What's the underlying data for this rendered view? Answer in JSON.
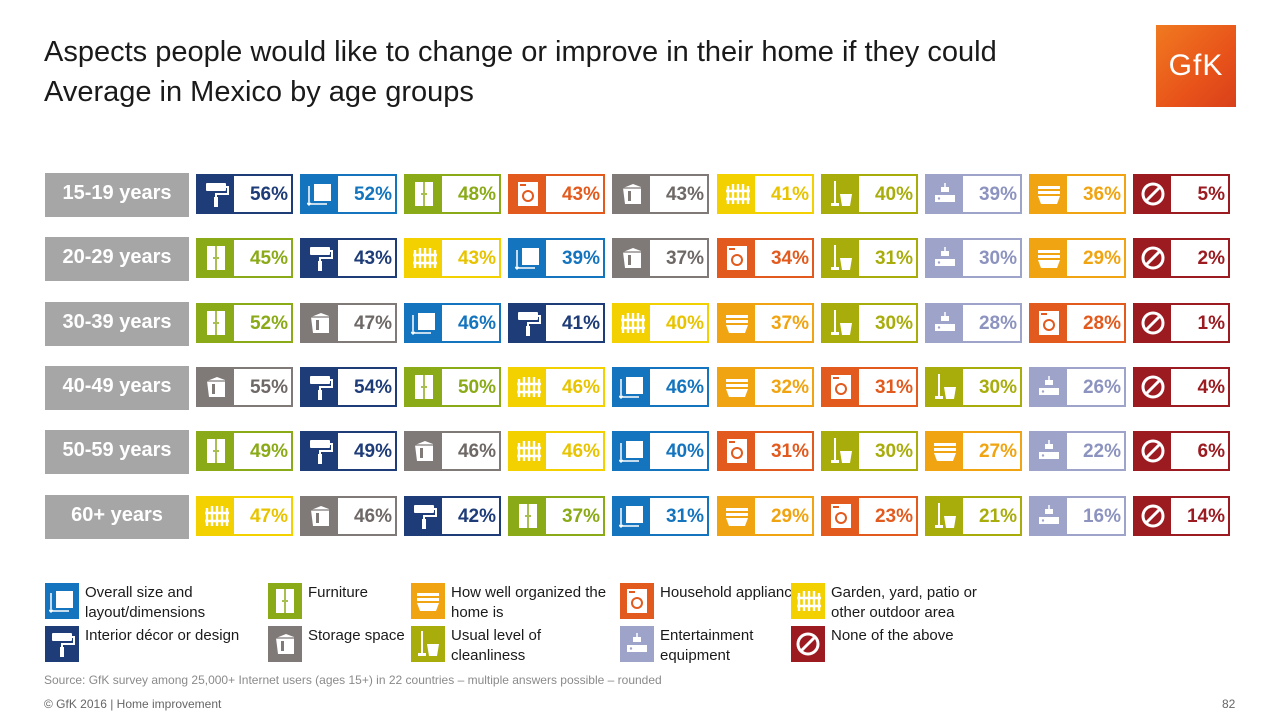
{
  "slide": {
    "title_line1": "Aspects people would like to change or improve in their home if they could",
    "title_line2": "Average in Mexico by age groups",
    "logo_text": "GfK",
    "source": "Source: GfK survey among 25,000+ Internet users (ages 15+) in 22 countries – multiple answers possible – rounded",
    "footer": "© GfK 2016 | Home improvement",
    "page_number": "82"
  },
  "categories": {
    "layout": {
      "label": "Overall size and layout/dimensions",
      "color": "#1474bd",
      "icon": "layout-icon"
    },
    "decor": {
      "label": "Interior décor or design",
      "color": "#1e3c78",
      "icon": "paint-roller-icon"
    },
    "furniture": {
      "label": "Furniture",
      "color": "#8aab17",
      "icon": "wardrobe-icon"
    },
    "storage": {
      "label": "Storage space",
      "color": "#7f7977",
      "icon": "box-icon"
    },
    "organized": {
      "label": "How well organized the home is",
      "color": "#f0a411",
      "icon": "drawer-icon"
    },
    "cleanliness": {
      "label": "Usual level of cleanliness",
      "color": "#a8ad0c",
      "icon": "mop-bucket-icon"
    },
    "appliances": {
      "label": "Household appliances",
      "color": "#e35a1e",
      "icon": "washing-machine-icon"
    },
    "entertainment": {
      "label": "Entertainment equipment",
      "color": "#9da3c9",
      "icon": "game-console-icon"
    },
    "garden": {
      "label": "Garden, yard, patio or other outdoor area",
      "color": "#f3d100",
      "icon": "fence-icon"
    },
    "none": {
      "label": "None of the above",
      "color": "#9b1b21",
      "icon": "prohibited-icon"
    }
  },
  "legend_order": [
    [
      "layout",
      "decor"
    ],
    [
      "furniture",
      "storage"
    ],
    [
      "organized",
      "cleanliness"
    ],
    [
      "appliances",
      "entertainment"
    ],
    [
      "garden",
      "none"
    ]
  ],
  "chart_data": {
    "type": "table",
    "title": "Aspects people would like to change or improve in their home if they could",
    "subtitle": "Average in Mexico by age groups",
    "unit": "%",
    "rows": [
      {
        "age": "15-19 years",
        "items": [
          {
            "cat": "decor",
            "value": 56
          },
          {
            "cat": "layout",
            "value": 52
          },
          {
            "cat": "furniture",
            "value": 48
          },
          {
            "cat": "appliances",
            "value": 43
          },
          {
            "cat": "storage",
            "value": 43
          },
          {
            "cat": "garden",
            "value": 41
          },
          {
            "cat": "cleanliness",
            "value": 40
          },
          {
            "cat": "entertainment",
            "value": 39
          },
          {
            "cat": "organized",
            "value": 36
          },
          {
            "cat": "none",
            "value": 5
          }
        ]
      },
      {
        "age": "20-29 years",
        "items": [
          {
            "cat": "furniture",
            "value": 45
          },
          {
            "cat": "decor",
            "value": 43
          },
          {
            "cat": "garden",
            "value": 43
          },
          {
            "cat": "layout",
            "value": 39
          },
          {
            "cat": "storage",
            "value": 37
          },
          {
            "cat": "appliances",
            "value": 34
          },
          {
            "cat": "cleanliness",
            "value": 31
          },
          {
            "cat": "entertainment",
            "value": 30
          },
          {
            "cat": "organized",
            "value": 29
          },
          {
            "cat": "none",
            "value": 2
          }
        ]
      },
      {
        "age": "30-39 years",
        "items": [
          {
            "cat": "furniture",
            "value": 52
          },
          {
            "cat": "storage",
            "value": 47
          },
          {
            "cat": "layout",
            "value": 46
          },
          {
            "cat": "decor",
            "value": 41
          },
          {
            "cat": "garden",
            "value": 40
          },
          {
            "cat": "organized",
            "value": 37
          },
          {
            "cat": "cleanliness",
            "value": 30
          },
          {
            "cat": "entertainment",
            "value": 28
          },
          {
            "cat": "appliances",
            "value": 28
          },
          {
            "cat": "none",
            "value": 1
          }
        ]
      },
      {
        "age": "40-49 years",
        "items": [
          {
            "cat": "storage",
            "value": 55
          },
          {
            "cat": "decor",
            "value": 54
          },
          {
            "cat": "furniture",
            "value": 50
          },
          {
            "cat": "garden",
            "value": 46
          },
          {
            "cat": "layout",
            "value": 46
          },
          {
            "cat": "organized",
            "value": 32
          },
          {
            "cat": "appliances",
            "value": 31
          },
          {
            "cat": "cleanliness",
            "value": 30
          },
          {
            "cat": "entertainment",
            "value": 26
          },
          {
            "cat": "none",
            "value": 4
          }
        ]
      },
      {
        "age": "50-59 years",
        "items": [
          {
            "cat": "furniture",
            "value": 49
          },
          {
            "cat": "decor",
            "value": 49
          },
          {
            "cat": "storage",
            "value": 46
          },
          {
            "cat": "garden",
            "value": 46
          },
          {
            "cat": "layout",
            "value": 40
          },
          {
            "cat": "appliances",
            "value": 31
          },
          {
            "cat": "cleanliness",
            "value": 30
          },
          {
            "cat": "organized",
            "value": 27
          },
          {
            "cat": "entertainment",
            "value": 22
          },
          {
            "cat": "none",
            "value": 6
          }
        ]
      },
      {
        "age": "60+ years",
        "items": [
          {
            "cat": "garden",
            "value": 47
          },
          {
            "cat": "storage",
            "value": 46
          },
          {
            "cat": "decor",
            "value": 42
          },
          {
            "cat": "furniture",
            "value": 37
          },
          {
            "cat": "layout",
            "value": 31
          },
          {
            "cat": "organized",
            "value": 29
          },
          {
            "cat": "appliances",
            "value": 23
          },
          {
            "cat": "cleanliness",
            "value": 21
          },
          {
            "cat": "entertainment",
            "value": 16
          },
          {
            "cat": "none",
            "value": 14
          }
        ]
      }
    ]
  }
}
